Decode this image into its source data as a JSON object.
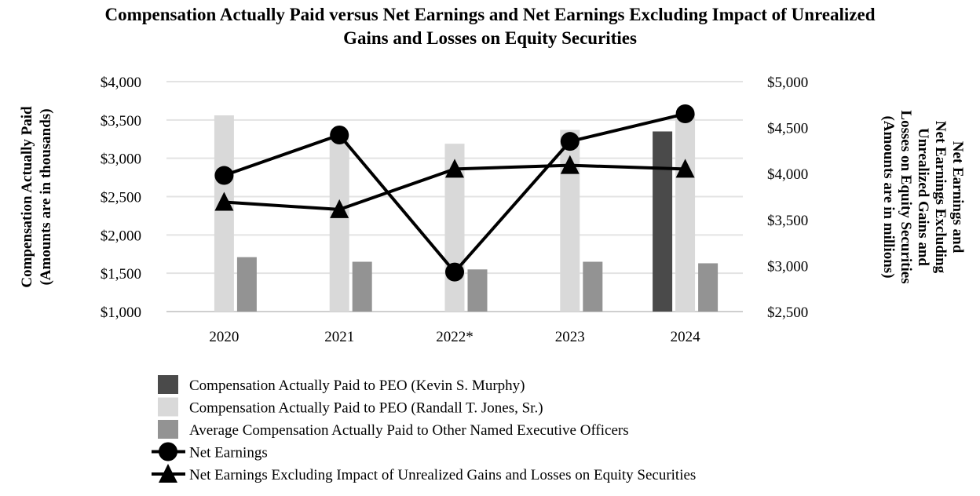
{
  "chart_data": {
    "type": "bar",
    "title_lines": [
      "Compensation Actually Paid versus Net Earnings and Net Earnings Excluding Impact of Unrealized",
      "Gains and Losses on Equity Securities"
    ],
    "categories": [
      "2020",
      "2021",
      "2022*",
      "2023",
      "2024"
    ],
    "y_left": {
      "label_lines": [
        "Compensation Actually Paid",
        "(Amounts are in thousands)"
      ],
      "range": [
        1000,
        4000
      ],
      "ticks": [
        1000,
        1500,
        2000,
        2500,
        3000,
        3500,
        4000
      ],
      "tick_labels": [
        "$1,000",
        "$1,500",
        "$2,000",
        "$2,500",
        "$3,000",
        "$3,500",
        "$4,000"
      ]
    },
    "y_right": {
      "label_lines": [
        "Net Earnings and",
        "Net Earnings Excluding",
        "Unrealized Gains and",
        "Losses on Equity Securities",
        "(Amounts are in millions)"
      ],
      "range": [
        2500,
        5000
      ],
      "ticks": [
        2500,
        3000,
        3500,
        4000,
        4500,
        5000
      ],
      "tick_labels": [
        "$2,500",
        "$3,000",
        "$3,500",
        "$4,000",
        "$4,500",
        "$5,000"
      ]
    },
    "grid": true,
    "legend_position": "bottom",
    "series": [
      {
        "name": "Compensation Actually Paid to PEO (Kevin S. Murphy)",
        "kind": "bar",
        "axis": "left",
        "color": "#4a4a4a",
        "values": [
          null,
          null,
          null,
          null,
          3350
        ]
      },
      {
        "name": "Compensation Actually Paid to PEO (Randall T. Jones, Sr.)",
        "kind": "bar",
        "axis": "left",
        "color": "#d9d9d9",
        "values": [
          3560,
          3320,
          3190,
          3370,
          3580
        ]
      },
      {
        "name": "Average Compensation Actually Paid to Other Named Executive Officers",
        "kind": "bar",
        "axis": "left",
        "color": "#939393",
        "values": [
          1710,
          1650,
          1550,
          1650,
          1630
        ]
      },
      {
        "name": "Net Earnings",
        "kind": "line",
        "marker": "circle",
        "axis": "right",
        "color": "#000000",
        "values": [
          3980,
          4420,
          2930,
          4350,
          4650
        ]
      },
      {
        "name": "Net Earnings Excluding Impact of Unrealized Gains and Losses on Equity Securities",
        "kind": "line",
        "marker": "triangle",
        "axis": "right",
        "color": "#000000",
        "values": [
          3690,
          3610,
          4050,
          4090,
          4050
        ]
      }
    ]
  }
}
